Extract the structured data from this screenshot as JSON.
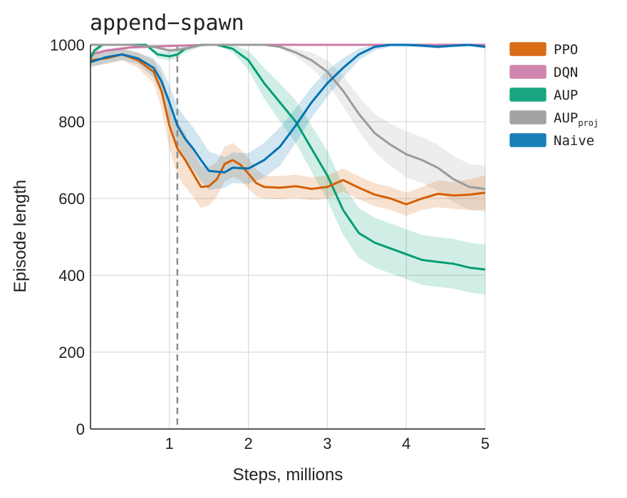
{
  "chart_data": {
    "type": "line",
    "title": "append−spawn",
    "xlabel": "Steps, millions",
    "ylabel": "Episode length",
    "xlim": [
      0,
      5
    ],
    "ylim": [
      0,
      1000
    ],
    "xticks": [
      1,
      2,
      3,
      4,
      5
    ],
    "yticks": [
      0,
      200,
      400,
      600,
      800,
      1000
    ],
    "grid": true,
    "legend_position": "right",
    "vline": {
      "x": 1.1,
      "style": "dashed",
      "color": "#8c8c8c"
    },
    "series": [
      {
        "name": "PPO",
        "color": "#d55e00",
        "x": [
          0,
          0.2,
          0.4,
          0.6,
          0.8,
          0.9,
          1.0,
          1.1,
          1.2,
          1.3,
          1.4,
          1.5,
          1.6,
          1.7,
          1.8,
          1.9,
          2.0,
          2.1,
          2.2,
          2.4,
          2.6,
          2.8,
          3.0,
          3.2,
          3.4,
          3.6,
          3.8,
          4.0,
          4.2,
          4.4,
          4.6,
          4.8,
          5.0
        ],
        "y": [
          960,
          965,
          975,
          960,
          930,
          880,
          790,
          730,
          700,
          665,
          630,
          632,
          650,
          690,
          700,
          688,
          665,
          640,
          630,
          628,
          632,
          625,
          630,
          648,
          628,
          610,
          600,
          585,
          600,
          612,
          608,
          610,
          615
        ],
        "band": [
          15,
          15,
          15,
          20,
          30,
          45,
          60,
          70,
          70,
          60,
          55,
          50,
          45,
          45,
          45,
          40,
          40,
          35,
          30,
          30,
          30,
          30,
          30,
          30,
          30,
          30,
          30,
          30,
          30,
          35,
          35,
          40,
          45
        ]
      },
      {
        "name": "DQN",
        "color": "#cc79a7",
        "x": [
          0,
          0.2,
          0.5,
          1.0,
          1.5,
          2.0,
          2.5,
          3.0,
          3.5,
          4.0,
          4.5,
          5.0
        ],
        "y": [
          975,
          985,
          993,
          997,
          1000,
          1000,
          1000,
          1000,
          1000,
          1000,
          1000,
          1000
        ],
        "band": [
          5,
          5,
          3,
          2,
          0,
          0,
          0,
          0,
          0,
          0,
          0,
          0
        ]
      },
      {
        "name": "AUP",
        "color": "#009e73",
        "x": [
          0,
          0.05,
          0.15,
          0.3,
          0.5,
          0.7,
          0.85,
          1.0,
          1.1,
          1.2,
          1.4,
          1.6,
          1.8,
          2.0,
          2.2,
          2.4,
          2.6,
          2.8,
          3.0,
          3.2,
          3.4,
          3.6,
          3.8,
          4.0,
          4.2,
          4.4,
          4.6,
          4.8,
          5.0
        ],
        "y": [
          965,
          985,
          1000,
          1000,
          1000,
          1000,
          975,
          970,
          975,
          990,
          1000,
          1000,
          990,
          960,
          900,
          850,
          800,
          730,
          660,
          570,
          510,
          485,
          470,
          455,
          440,
          435,
          430,
          420,
          415
        ],
        "band": [
          10,
          10,
          5,
          0,
          0,
          0,
          10,
          10,
          10,
          10,
          5,
          0,
          10,
          25,
          40,
          50,
          55,
          60,
          65,
          65,
          65,
          65,
          65,
          65,
          65,
          65,
          65,
          65,
          65
        ]
      },
      {
        "name": "AUP_proj",
        "color": "#9a9a9a",
        "x": [
          0,
          0.5,
          0.8,
          1.0,
          1.2,
          1.4,
          1.6,
          1.8,
          2.0,
          2.2,
          2.4,
          2.6,
          2.8,
          3.0,
          3.2,
          3.4,
          3.6,
          3.8,
          4.0,
          4.2,
          4.4,
          4.6,
          4.8,
          5.0
        ],
        "y": [
          1000,
          1000,
          995,
          985,
          990,
          1000,
          1000,
          1000,
          1000,
          1000,
          995,
          980,
          960,
          930,
          880,
          820,
          770,
          740,
          715,
          700,
          680,
          650,
          630,
          625
        ],
        "band": [
          0,
          0,
          5,
          5,
          5,
          0,
          0,
          0,
          0,
          0,
          5,
          10,
          20,
          30,
          40,
          45,
          50,
          55,
          60,
          60,
          60,
          60,
          60,
          60
        ]
      },
      {
        "name": "Naive",
        "color": "#0072b2",
        "x": [
          0,
          0.2,
          0.4,
          0.6,
          0.8,
          0.9,
          1.0,
          1.1,
          1.2,
          1.3,
          1.4,
          1.5,
          1.6,
          1.7,
          1.8,
          2.0,
          2.2,
          2.4,
          2.6,
          2.8,
          3.0,
          3.2,
          3.4,
          3.6,
          3.8,
          4.0,
          4.2,
          4.4,
          4.6,
          4.8,
          5.0
        ],
        "y": [
          955,
          968,
          975,
          965,
          940,
          905,
          850,
          790,
          755,
          730,
          700,
          672,
          670,
          668,
          680,
          678,
          700,
          735,
          790,
          850,
          900,
          940,
          975,
          995,
          1000,
          1000,
          998,
          995,
          998,
          1000,
          995
        ],
        "band": [
          15,
          15,
          15,
          15,
          25,
          35,
          45,
          50,
          55,
          55,
          55,
          50,
          45,
          40,
          40,
          40,
          45,
          50,
          45,
          40,
          35,
          25,
          15,
          10,
          5,
          5,
          5,
          5,
          5,
          5,
          5
        ]
      }
    ],
    "legend": [
      {
        "label": "PPO",
        "sub": "",
        "color": "#d55e00"
      },
      {
        "label": "DQN",
        "sub": "",
        "color": "#cc79a7"
      },
      {
        "label": "AUP",
        "sub": "",
        "color": "#009e73"
      },
      {
        "label": "AUP",
        "sub": "proj",
        "color": "#9a9a9a"
      },
      {
        "label": "Naive",
        "sub": "",
        "color": "#0072b2"
      }
    ]
  }
}
